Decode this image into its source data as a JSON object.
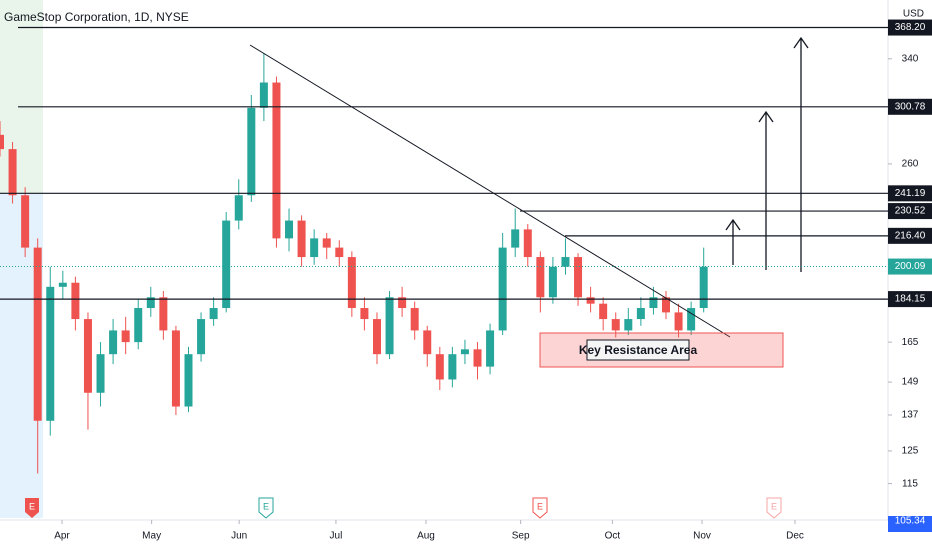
{
  "chart_data": {
    "type": "candlestick",
    "title": "GameStop Corporation, 1D, NYSE",
    "currency": "USD",
    "annotation": "Key Resistance Area",
    "earnings_label": "E",
    "log_scale": true,
    "up_color": "#26a69a",
    "down_color": "#ef5350",
    "x": [
      0,
      3,
      6,
      9,
      12,
      15,
      18,
      21,
      24,
      27,
      30,
      33,
      36,
      39,
      42,
      45,
      48,
      51,
      54,
      57,
      60,
      63,
      66,
      69,
      72,
      75,
      78,
      81,
      84,
      87,
      90,
      93,
      96,
      99,
      102,
      105,
      108,
      111,
      114,
      117,
      120,
      123,
      126,
      129,
      132,
      135,
      138,
      141,
      144,
      147,
      150,
      153,
      156,
      159,
      162,
      165,
      168
    ],
    "open": [
      280,
      270,
      240,
      210,
      135,
      190,
      192,
      175,
      145,
      160,
      170,
      165,
      180,
      185,
      170,
      140,
      160,
      175,
      180,
      225,
      240,
      300,
      320,
      215,
      225,
      205,
      215,
      210,
      205,
      180,
      175,
      160,
      185,
      180,
      170,
      160,
      150,
      160,
      162,
      155,
      170,
      210,
      220,
      205,
      185,
      200,
      205,
      185,
      182,
      175,
      170,
      175,
      180,
      185,
      178,
      170,
      180
    ],
    "high": [
      290,
      275,
      245,
      215,
      200,
      198,
      195,
      178,
      165,
      175,
      176,
      184,
      190,
      188,
      172,
      163,
      178,
      185,
      230,
      250,
      310,
      345,
      325,
      232,
      228,
      220,
      218,
      214,
      208,
      185,
      178,
      188,
      190,
      183,
      172,
      163,
      163,
      166,
      165,
      173,
      218,
      232,
      223,
      208,
      205,
      215,
      207,
      190,
      185,
      178,
      180,
      185,
      190,
      188,
      182,
      183,
      210
    ],
    "low": [
      265,
      235,
      205,
      118,
      130,
      184,
      170,
      132,
      140,
      156,
      160,
      162,
      176,
      166,
      137,
      138,
      157,
      172,
      178,
      220,
      236,
      290,
      210,
      208,
      200,
      201,
      204,
      200,
      176,
      170,
      156,
      158,
      176,
      166,
      155,
      146,
      147,
      156,
      150,
      152,
      168,
      205,
      200,
      178,
      182,
      196,
      181,
      178,
      170,
      167,
      168,
      172,
      177,
      175,
      167,
      168,
      178
    ],
    "close": [
      270,
      240,
      210,
      135,
      190,
      192,
      175,
      145,
      160,
      170,
      165,
      180,
      185,
      170,
      140,
      160,
      175,
      180,
      225,
      240,
      300,
      320,
      215,
      225,
      205,
      215,
      210,
      205,
      180,
      175,
      160,
      185,
      180,
      170,
      160,
      150,
      160,
      162,
      155,
      170,
      210,
      220,
      205,
      185,
      200,
      205,
      185,
      182,
      175,
      170,
      175,
      180,
      185,
      178,
      170,
      180,
      200
    ],
    "xlim": [
      0,
      212
    ],
    "xticks": [
      {
        "value": 14.8,
        "label": "Apr"
      },
      {
        "value": 36.2,
        "label": "May"
      },
      {
        "value": 57.1,
        "label": "Jun"
      },
      {
        "value": 80.2,
        "label": "Jul"
      },
      {
        "value": 101.7,
        "label": "Aug"
      },
      {
        "value": 124.3,
        "label": "Sep"
      },
      {
        "value": 146.2,
        "label": "Oct"
      },
      {
        "value": 167.6,
        "label": "Nov"
      },
      {
        "value": 189.8,
        "label": "Dec"
      }
    ],
    "ylim": [
      105.34,
      395
    ],
    "yticks": [
      115,
      125,
      137,
      149,
      165,
      260,
      340
    ],
    "levels": [
      {
        "value": 368.2,
        "label": "368.20"
      },
      300.78,
      241.19,
      230.52,
      {
        "value": 216.4,
        "label": "216.40"
      },
      184.15
    ],
    "last_price": 200.09,
    "last_price_color": "#26a69a",
    "axis_bottom": 105.34
  }
}
